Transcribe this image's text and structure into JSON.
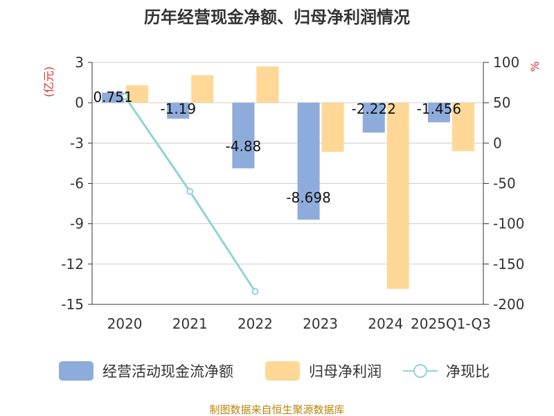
{
  "title": "历年经营现金净额、归母净利润情况",
  "source": "制图数据来自恒生聚源数据库",
  "chart_data": {
    "type": "bar",
    "categories": [
      "2020",
      "2021",
      "2022",
      "2023",
      "2024",
      "2025Q1-Q3"
    ],
    "series": [
      {
        "name": "经营活动现金流净额",
        "kind": "bar",
        "axis": "left",
        "color": "#8EACDB",
        "values": [
          0.751,
          -1.19,
          -4.88,
          -8.698,
          -2.222,
          -1.456
        ],
        "labels": [
          "0.751",
          "-1.19",
          "-4.88",
          "-8.698",
          "-2.222",
          "-1.456"
        ]
      },
      {
        "name": "归母净利润",
        "kind": "bar",
        "axis": "left",
        "color": "#FFD796",
        "values": [
          1.3,
          2.05,
          2.7,
          -3.65,
          -13.85,
          -3.6
        ]
      },
      {
        "name": "净现比",
        "kind": "line",
        "axis": "right",
        "color": "#8ED3D9",
        "values": [
          58,
          -60,
          -184,
          null,
          null,
          null
        ]
      }
    ],
    "left_axis": {
      "unit": "(亿元)",
      "ylim": [
        -15,
        3
      ],
      "ticks": [
        3,
        0,
        -3,
        -6,
        -9,
        -12,
        -15
      ]
    },
    "right_axis": {
      "unit": "%",
      "ylim": [
        -200,
        100
      ],
      "ticks": [
        100,
        50,
        0,
        -50,
        -100,
        -150,
        -200
      ]
    },
    "legend_position": "bottom"
  }
}
